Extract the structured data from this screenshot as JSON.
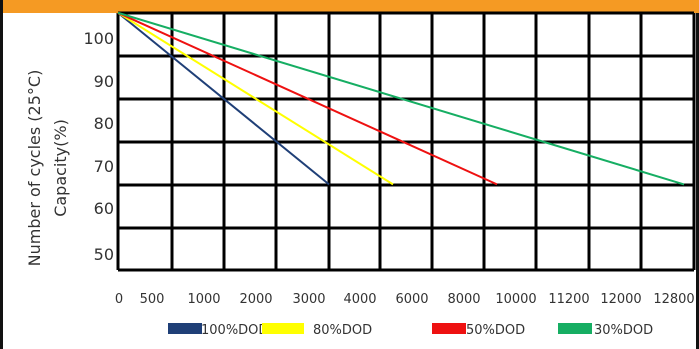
{
  "chart_data": {
    "type": "line",
    "title": "",
    "ylabel": "Number of cycles (25°C)",
    "ylabel_line2": "Capacity(%)",
    "x_categories": [
      "0",
      "500",
      "1000",
      "2000",
      "3000",
      "4000",
      "6000",
      "8000",
      "10000",
      "11200",
      "12000",
      "12800"
    ],
    "y_ticks": [
      50,
      60,
      70,
      80,
      90,
      100
    ],
    "ylim": [
      45,
      108
    ],
    "grid": true,
    "legend_placement": "bottom",
    "series": [
      {
        "name": "100%DOD",
        "color": "#1f3f77",
        "points": [
          {
            "x": 0,
            "y": 108
          },
          {
            "x": 3000,
            "y": 70
          }
        ]
      },
      {
        "name": "80%DOD",
        "color": "#ffff00",
        "points": [
          {
            "x": 0,
            "y": 108
          },
          {
            "x": 4500,
            "y": 70
          }
        ]
      },
      {
        "name": "50%DOD",
        "color": "#ee1111",
        "points": [
          {
            "x": 0,
            "y": 108
          },
          {
            "x": 8500,
            "y": 70
          }
        ]
      },
      {
        "name": "30%DOD",
        "color": "#16ae63",
        "points": [
          {
            "x": 0,
            "y": 108
          },
          {
            "x": 13500,
            "y": 70
          }
        ]
      }
    ]
  }
}
